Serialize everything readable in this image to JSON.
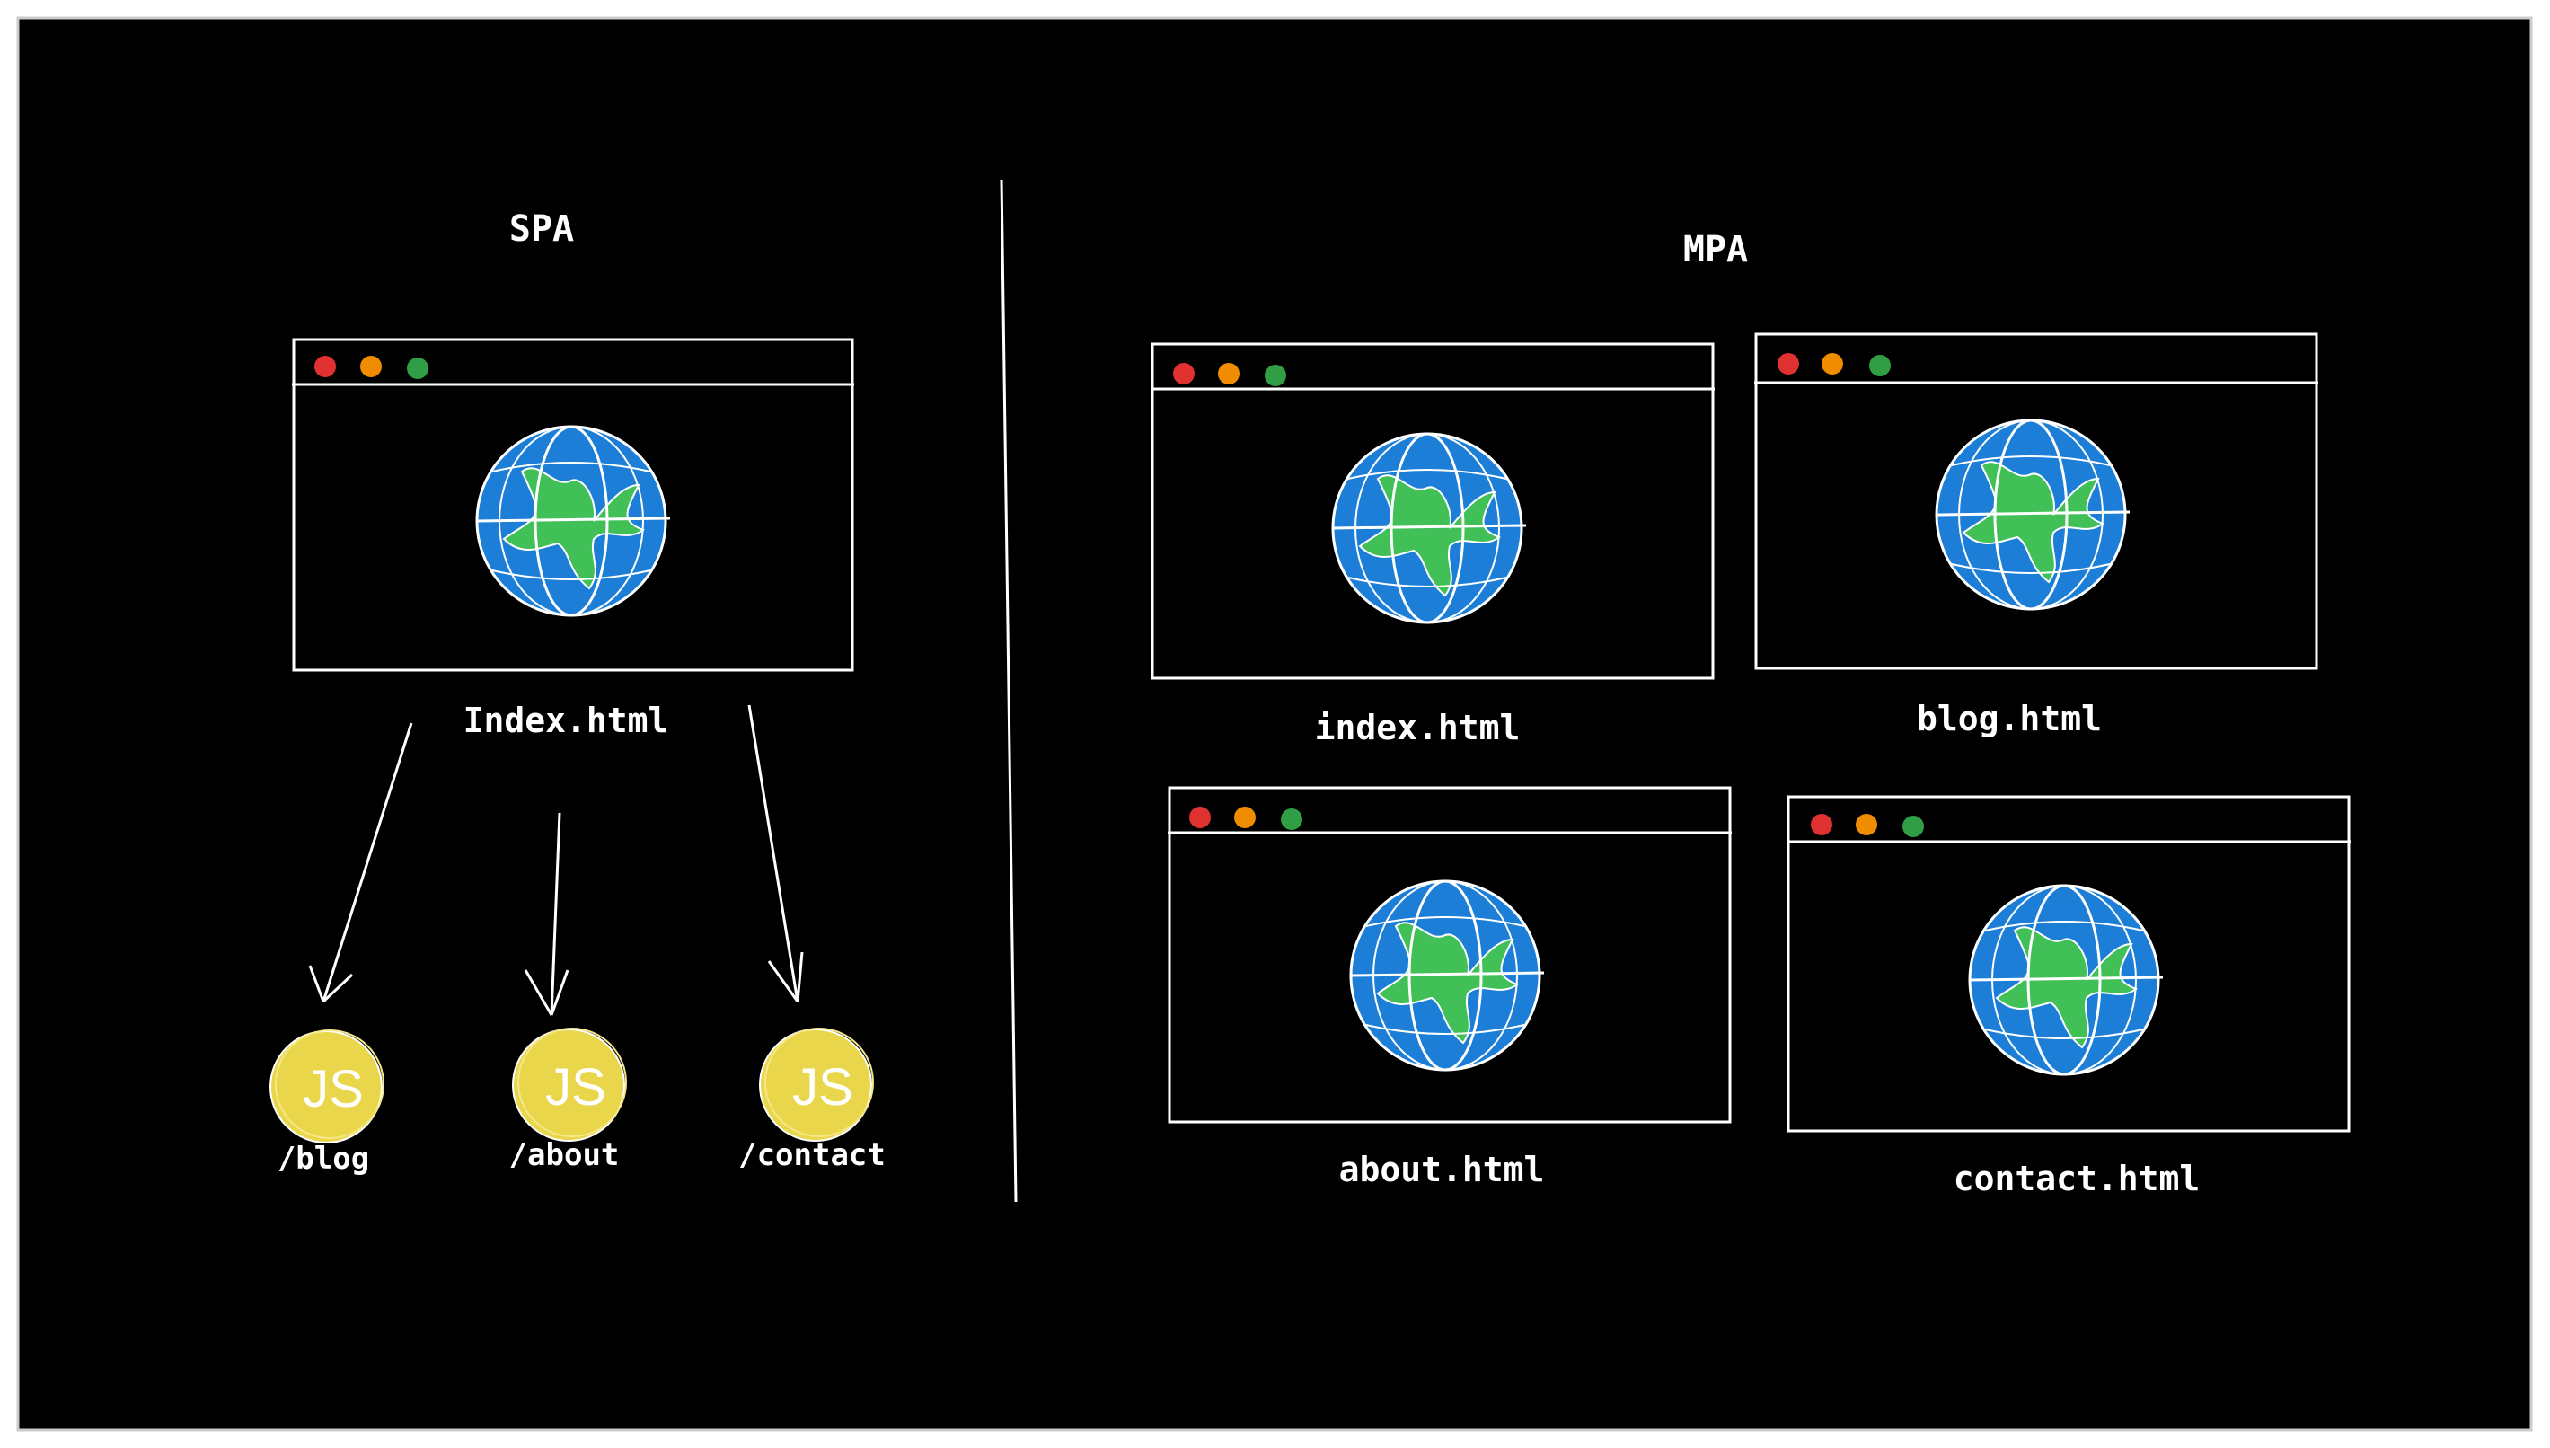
{
  "diagram": {
    "spa": {
      "heading": "SPA",
      "file_label": "Index.html",
      "routes": [
        {
          "path": "/blog",
          "badge": "JS"
        },
        {
          "path": "/about",
          "badge": "JS"
        },
        {
          "path": "/contact",
          "badge": "JS"
        }
      ]
    },
    "mpa": {
      "heading": "MPA",
      "pages": [
        {
          "file_label": "index.html"
        },
        {
          "file_label": "blog.html"
        },
        {
          "file_label": "about.html"
        },
        {
          "file_label": "contact.html"
        }
      ]
    },
    "colors": {
      "background": "#000000",
      "stroke": "#ffffff",
      "dot_red": "#e03131",
      "dot_yellow": "#f08c00",
      "dot_green": "#2f9e44",
      "globe_ocean": "#1c7ed6",
      "globe_land": "#40c057",
      "js_badge": "#e9d64a"
    }
  }
}
